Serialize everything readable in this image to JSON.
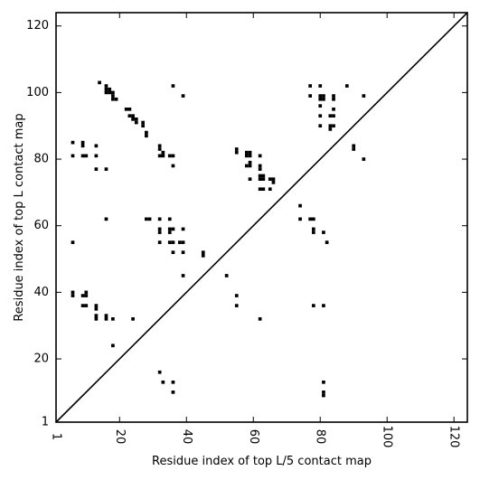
{
  "chart_data": {
    "type": "scatter",
    "marker": "square",
    "xlabel": "Residue index of top L/5 contact map",
    "ylabel": "Residue index of top L contact map",
    "xlim": [
      1,
      124
    ],
    "ylim": [
      1,
      124
    ],
    "xticks": [
      1,
      20,
      40,
      60,
      80,
      100,
      120
    ],
    "yticks": [
      1,
      20,
      40,
      60,
      80,
      100,
      120
    ],
    "grid": false,
    "diagonal": true,
    "colors": {
      "marker": "#000000",
      "line": "#000000",
      "background": "#ffffff"
    },
    "series": [
      {
        "points": [
          [
            6,
            85
          ],
          [
            6,
            81
          ],
          [
            9,
            85
          ],
          [
            9,
            84
          ],
          [
            9,
            81
          ],
          [
            10,
            81
          ],
          [
            13,
            84
          ],
          [
            13,
            81
          ],
          [
            13,
            77
          ],
          [
            14,
            103
          ],
          [
            16,
            77
          ],
          [
            16,
            102
          ],
          [
            16,
            101
          ],
          [
            16,
            100
          ],
          [
            17,
            101
          ],
          [
            17,
            100
          ],
          [
            18,
            100
          ],
          [
            18,
            99
          ],
          [
            18,
            98
          ],
          [
            19,
            98
          ],
          [
            22,
            95
          ],
          [
            23,
            95
          ],
          [
            23,
            93
          ],
          [
            24,
            93
          ],
          [
            24,
            92
          ],
          [
            25,
            92
          ],
          [
            25,
            91
          ],
          [
            27,
            91
          ],
          [
            27,
            90
          ],
          [
            28,
            88
          ],
          [
            28,
            87
          ],
          [
            32,
            84
          ],
          [
            32,
            83
          ],
          [
            32,
            81
          ],
          [
            33,
            82
          ],
          [
            33,
            81
          ],
          [
            35,
            81
          ],
          [
            36,
            81
          ],
          [
            36,
            78
          ],
          [
            36,
            102
          ],
          [
            39,
            99
          ],
          [
            16,
            62
          ],
          [
            28,
            62
          ],
          [
            29,
            62
          ],
          [
            32,
            62
          ],
          [
            35,
            62
          ],
          [
            32,
            59
          ],
          [
            32,
            58
          ],
          [
            35,
            59
          ],
          [
            35,
            58
          ],
          [
            36,
            59
          ],
          [
            39,
            59
          ],
          [
            32,
            55
          ],
          [
            35,
            55
          ],
          [
            36,
            55
          ],
          [
            38,
            55
          ],
          [
            39,
            55
          ],
          [
            6,
            55
          ],
          [
            36,
            52
          ],
          [
            39,
            52
          ],
          [
            45,
            52
          ],
          [
            45,
            51
          ],
          [
            39,
            45
          ],
          [
            52,
            45
          ],
          [
            6,
            40
          ],
          [
            6,
            39
          ],
          [
            9,
            39
          ],
          [
            10,
            40
          ],
          [
            10,
            39
          ],
          [
            9,
            36
          ],
          [
            10,
            36
          ],
          [
            13,
            36
          ],
          [
            13,
            35
          ],
          [
            13,
            33
          ],
          [
            13,
            32
          ],
          [
            16,
            33
          ],
          [
            16,
            32
          ],
          [
            18,
            32
          ],
          [
            24,
            32
          ],
          [
            18,
            24
          ],
          [
            32,
            16
          ],
          [
            33,
            13
          ],
          [
            36,
            13
          ],
          [
            36,
            10
          ],
          [
            55,
            83
          ],
          [
            55,
            82
          ],
          [
            58,
            82
          ],
          [
            58,
            81
          ],
          [
            59,
            82
          ],
          [
            59,
            81
          ],
          [
            62,
            81
          ],
          [
            58,
            78
          ],
          [
            59,
            79
          ],
          [
            59,
            78
          ],
          [
            62,
            78
          ],
          [
            62,
            77
          ],
          [
            59,
            74
          ],
          [
            62,
            75
          ],
          [
            62,
            74
          ],
          [
            63,
            75
          ],
          [
            63,
            74
          ],
          [
            65,
            74
          ],
          [
            66,
            74
          ],
          [
            66,
            73
          ],
          [
            62,
            71
          ],
          [
            63,
            71
          ],
          [
            65,
            71
          ],
          [
            55,
            39
          ],
          [
            55,
            36
          ],
          [
            62,
            32
          ],
          [
            77,
            102
          ],
          [
            80,
            102
          ],
          [
            77,
            99
          ],
          [
            80,
            99
          ],
          [
            80,
            98
          ],
          [
            81,
            99
          ],
          [
            81,
            98
          ],
          [
            84,
            99
          ],
          [
            84,
            98
          ],
          [
            88,
            102
          ],
          [
            93,
            99
          ],
          [
            80,
            96
          ],
          [
            84,
            95
          ],
          [
            80,
            93
          ],
          [
            83,
            93
          ],
          [
            84,
            93
          ],
          [
            80,
            90
          ],
          [
            83,
            90
          ],
          [
            83,
            89
          ],
          [
            84,
            90
          ],
          [
            90,
            84
          ],
          [
            90,
            83
          ],
          [
            93,
            80
          ],
          [
            74,
            66
          ],
          [
            74,
            62
          ],
          [
            77,
            62
          ],
          [
            78,
            62
          ],
          [
            78,
            59
          ],
          [
            78,
            58
          ],
          [
            81,
            58
          ],
          [
            82,
            55
          ],
          [
            78,
            36
          ],
          [
            81,
            36
          ],
          [
            81,
            13
          ],
          [
            81,
            10
          ],
          [
            81,
            9
          ]
        ]
      }
    ]
  }
}
